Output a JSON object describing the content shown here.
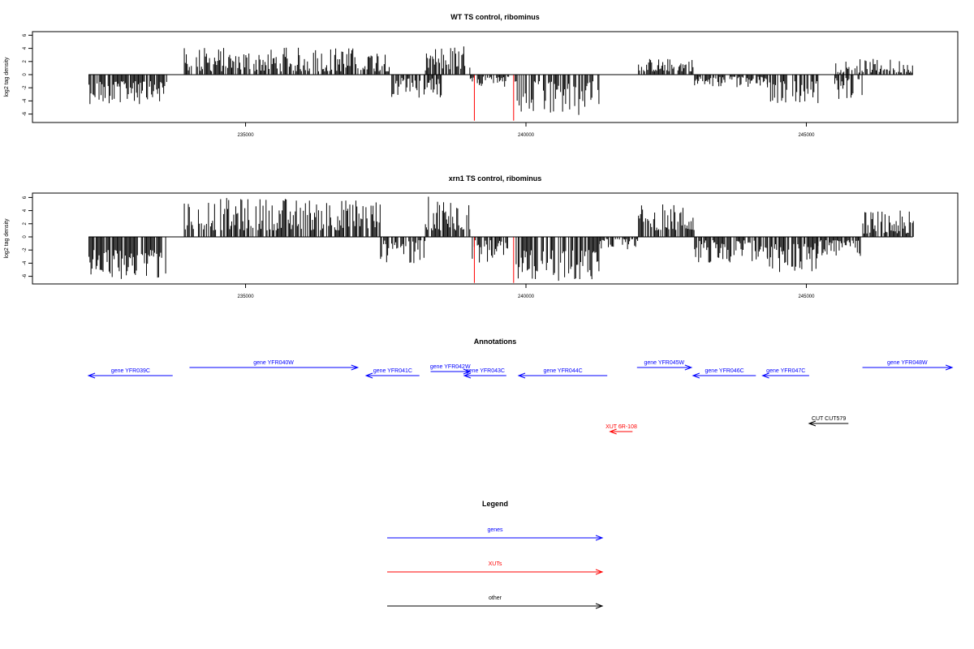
{
  "chart_data": [
    {
      "type": "bar",
      "title": "WT TS control, ribominus",
      "ylabel": "log2 tag density",
      "xlabel": "",
      "x_ticks": [
        235000,
        240000,
        245000
      ],
      "y_ticks": [
        -6,
        -4,
        -2,
        0,
        2,
        4,
        6
      ],
      "xlim": [
        231200,
        247700
      ],
      "ylim": [
        -7,
        6.5
      ],
      "grid": false,
      "series": [
        {
          "values": [
            {
              "x": [
                232200,
                233600
              ],
              "y": [
                -1,
                -4.5
              ]
            },
            {
              "x": [
                233900,
                237600
              ],
              "y": [
                0.5,
                4.2
              ]
            },
            {
              "x": [
                237600,
                238500
              ],
              "y": [
                -0.5,
                -3.5
              ]
            },
            {
              "x": [
                238200,
                239000
              ],
              "y": [
                0.5,
                4.5
              ]
            },
            {
              "x": [
                239000,
                239700
              ],
              "y": [
                -0.3,
                -2
              ]
            },
            {
              "x": [
                239800,
                241300
              ],
              "y": [
                -1,
                -6.5
              ]
            },
            {
              "x": [
                242000,
                243000
              ],
              "y": [
                0.5,
                2.5
              ]
            },
            {
              "x": [
                243000,
                244300
              ],
              "y": [
                -0.3,
                -2
              ]
            },
            {
              "x": [
                244300,
                245200
              ],
              "y": [
                -1,
                -4.5
              ]
            },
            {
              "x": [
                245500,
                246000
              ],
              "y": [
                -0.5,
                -4
              ]
            },
            {
              "x": [
                245500,
                246900
              ],
              "y": [
                0.3,
                2.4
              ]
            }
          ]
        },
        {
          "name": "red",
          "values": [
            {
              "x": 239080,
              "y": -7
            },
            {
              "x": 239780,
              "y": -7
            }
          ]
        }
      ]
    },
    {
      "type": "bar",
      "title": "xrn1 TS control, ribominus",
      "ylabel": "log2 tag density",
      "xlabel": "",
      "x_ticks": [
        235000,
        240000,
        245000
      ],
      "y_ticks": [
        -6,
        -4,
        -2,
        0,
        2,
        4,
        6
      ],
      "xlim": [
        231200,
        247700
      ],
      "ylim": [
        -7,
        6.5
      ],
      "grid": false,
      "series": [
        {
          "values": [
            {
              "x": [
                232200,
                233600
              ],
              "y": [
                -2,
                -6.5
              ]
            },
            {
              "x": [
                233900,
                237400
              ],
              "y": [
                1,
                6
              ]
            },
            {
              "x": [
                237400,
                238200
              ],
              "y": [
                -0.5,
                -4
              ]
            },
            {
              "x": [
                238200,
                239000
              ],
              "y": [
                1,
                6.2
              ]
            },
            {
              "x": [
                239000,
                239700
              ],
              "y": [
                -0.5,
                -4
              ]
            },
            {
              "x": [
                239800,
                241300
              ],
              "y": [
                -2,
                -6.8
              ]
            },
            {
              "x": [
                241300,
                242000
              ],
              "y": [
                -0.3,
                -2
              ]
            },
            {
              "x": [
                242000,
                243000
              ],
              "y": [
                1,
                5
              ]
            },
            {
              "x": [
                243000,
                244300
              ],
              "y": [
                -0.5,
                -4
              ]
            },
            {
              "x": [
                244300,
                245200
              ],
              "y": [
                -1,
                -5.5
              ]
            },
            {
              "x": [
                245200,
                246000
              ],
              "y": [
                -0.5,
                -3
              ]
            },
            {
              "x": [
                246000,
                246900
              ],
              "y": [
                0.5,
                4
              ]
            }
          ]
        },
        {
          "name": "red",
          "values": [
            {
              "x": 239080,
              "y": -7
            },
            {
              "x": 239780,
              "y": -7
            }
          ]
        }
      ]
    }
  ],
  "annotations": {
    "title": "Annotations",
    "features": [
      {
        "label": "gene YFR039C",
        "start": 232200,
        "end": 233700,
        "strand": "-",
        "row": 1,
        "color": "#0000ff"
      },
      {
        "label": "gene YFR040W",
        "start": 234000,
        "end": 237000,
        "strand": "+",
        "row": 0,
        "color": "#0000ff"
      },
      {
        "label": "gene YFR041C",
        "start": 237150,
        "end": 238100,
        "strand": "-",
        "row": 1,
        "color": "#0000ff"
      },
      {
        "label": "gene YFR042W",
        "start": 238300,
        "end": 239000,
        "strand": "+",
        "row": 0.5,
        "color": "#0000ff"
      },
      {
        "label": "gene YFR043C",
        "start": 238900,
        "end": 239650,
        "strand": "-",
        "row": 1,
        "color": "#0000ff"
      },
      {
        "label": "gene YFR044C",
        "start": 239870,
        "end": 241450,
        "strand": "-",
        "row": 1,
        "color": "#0000ff"
      },
      {
        "label": "gene YFR045W",
        "start": 241980,
        "end": 242950,
        "strand": "+",
        "row": 0,
        "color": "#0000ff"
      },
      {
        "label": "gene YFR046C",
        "start": 242980,
        "end": 244100,
        "strand": "-",
        "row": 1,
        "color": "#0000ff"
      },
      {
        "label": "gene YFR047C",
        "start": 244220,
        "end": 245050,
        "strand": "-",
        "row": 1,
        "color": "#0000ff"
      },
      {
        "label": "gene YFR048W",
        "start": 246000,
        "end": 247600,
        "strand": "+",
        "row": 0,
        "color": "#0000ff"
      },
      {
        "label": "CUT CUT579",
        "start": 245050,
        "end": 245750,
        "strand": "-",
        "row": 3,
        "color": "#000000"
      },
      {
        "label": "XUT 6R-108",
        "start": 241500,
        "end": 241900,
        "strand": "-",
        "row": 4,
        "color": "#ff0000"
      }
    ]
  },
  "legend": {
    "title": "Legend",
    "items": [
      {
        "label": "genes",
        "color": "#0000ff"
      },
      {
        "label": "XUTs",
        "color": "#ff0000"
      },
      {
        "label": "other",
        "color": "#000000"
      }
    ]
  }
}
